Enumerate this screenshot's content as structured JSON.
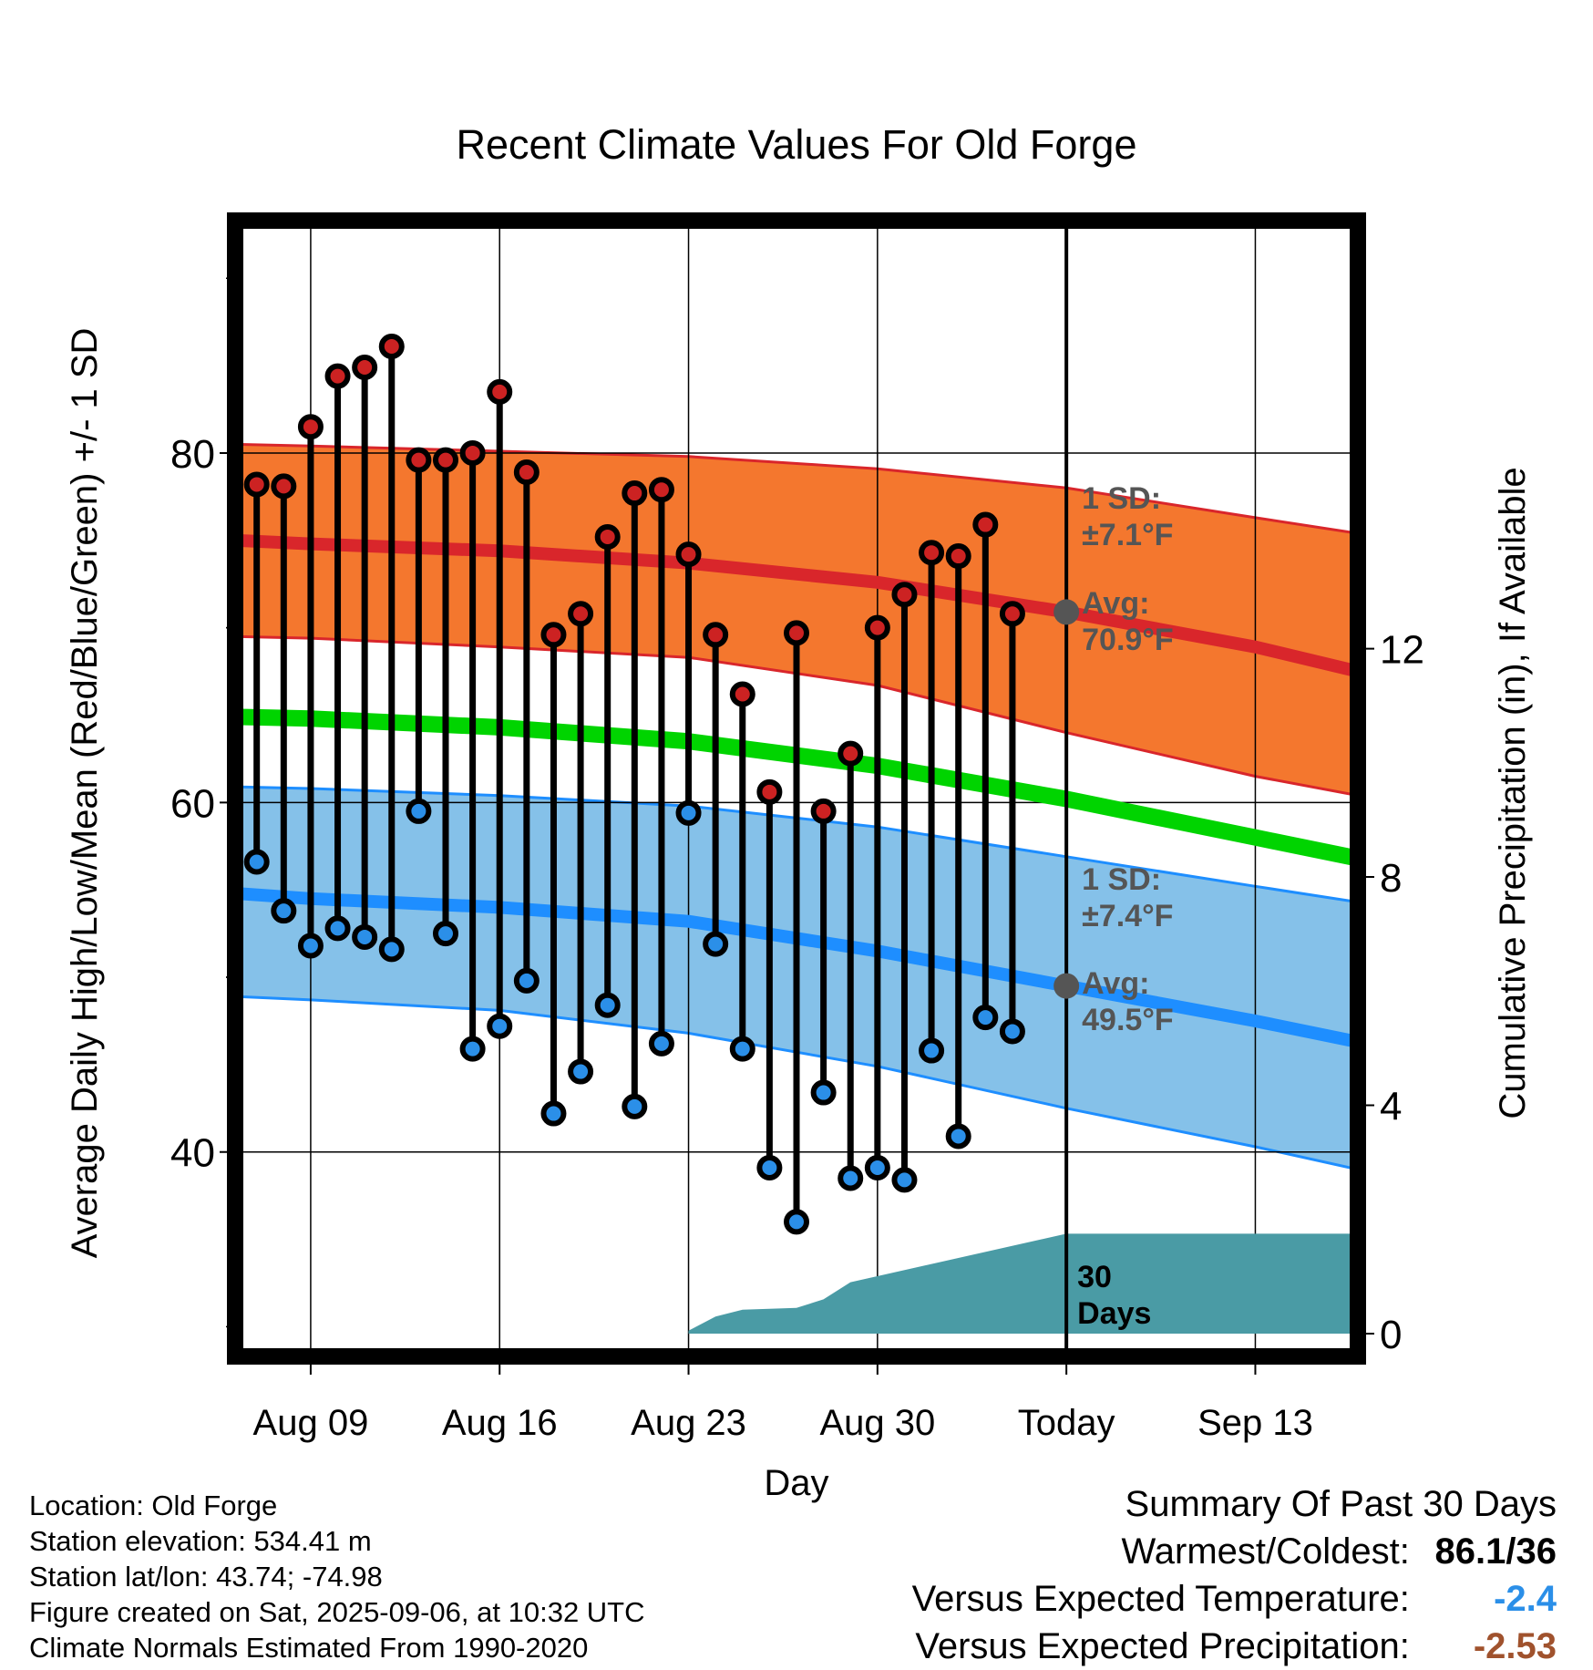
{
  "chart_data": {
    "type": "line",
    "title": "Recent Climate Values For Old Forge",
    "xlabel": "Day",
    "ylabel": "Average Daily High/Low/Mean (Red/Blue/Green) +/- 1 SD",
    "y2label": "Cumulative Precipitation (in), If Available",
    "ylim": [
      28.3,
      93.3
    ],
    "y2lim": [
      -0.4,
      19.5
    ],
    "xlim": [
      -2.8,
      38.8
    ],
    "y_ticks": [
      "40",
      "60",
      "80"
    ],
    "y2_ticks": [
      "0",
      "4",
      "8",
      "12"
    ],
    "x_ticks": [
      {
        "day": 0,
        "label": "Aug 09"
      },
      {
        "day": 7,
        "label": "Aug 16"
      },
      {
        "day": 14,
        "label": "Aug 23"
      },
      {
        "day": 21,
        "label": "Aug 30"
      },
      {
        "day": 28,
        "label": "Today"
      },
      {
        "day": 35,
        "label": "Sep 13"
      }
    ],
    "today_day": 28,
    "daily_high": [
      78.2,
      78.1,
      81.5,
      84.4,
      84.9,
      86.1,
      79.6,
      79.6,
      80.0,
      83.5,
      78.9,
      69.6,
      70.8,
      75.2,
      77.7,
      77.9,
      74.2,
      69.6,
      66.2,
      60.6,
      69.7,
      59.5,
      62.8,
      70.0,
      71.9,
      74.3,
      74.1,
      75.9,
      70.8
    ],
    "daily_low": [
      56.6,
      53.8,
      51.8,
      52.8,
      52.3,
      51.6,
      59.5,
      52.5,
      45.9,
      47.2,
      49.8,
      42.2,
      44.6,
      48.4,
      42.6,
      46.2,
      59.4,
      51.9,
      45.9,
      39.1,
      36.0,
      43.4,
      38.5,
      39.1,
      38.4,
      45.8,
      40.9,
      47.7,
      46.9
    ],
    "normal_high": {
      "x": [
        -2.8,
        0,
        7,
        14,
        21,
        28,
        35,
        38.8
      ],
      "avg": [
        75.0,
        74.8,
        74.4,
        73.7,
        72.6,
        70.9,
        68.9,
        67.5
      ],
      "upper": [
        80.5,
        80.4,
        80.1,
        79.8,
        79.1,
        78.0,
        76.3,
        75.4
      ],
      "lower": [
        69.5,
        69.4,
        68.9,
        68.3,
        66.7,
        64.0,
        61.5,
        60.4
      ]
    },
    "normal_low": {
      "x": [
        -2.8,
        0,
        7,
        14,
        21,
        28,
        35,
        38.8
      ],
      "avg": [
        54.8,
        54.5,
        54.0,
        53.2,
        51.5,
        49.5,
        47.5,
        46.3
      ],
      "upper": [
        60.9,
        60.8,
        60.4,
        59.8,
        58.6,
        56.9,
        55.2,
        54.3
      ],
      "lower": [
        48.9,
        48.7,
        48.1,
        46.8,
        44.9,
        42.5,
        40.3,
        39.0
      ]
    },
    "normal_mean": {
      "x": [
        -2.8,
        0,
        7,
        14,
        21,
        28,
        35,
        38.8
      ],
      "values": [
        64.9,
        64.8,
        64.3,
        63.5,
        62.1,
        60.2,
        58.0,
        56.8
      ]
    },
    "precip_cumulative": {
      "x": [
        14,
        15,
        16,
        18,
        19,
        20,
        28,
        38.8
      ],
      "values": [
        0.05,
        0.3,
        0.42,
        0.45,
        0.6,
        0.9,
        1.75,
        1.75
      ]
    },
    "annotations": {
      "high_sd": [
        "1 SD:",
        "±7.1°F"
      ],
      "high_avg": [
        "Avg:",
        "70.9°F"
      ],
      "low_sd": [
        "1 SD:",
        "±7.4°F"
      ],
      "low_avg": [
        "Avg:",
        "49.5°F"
      ],
      "precip_days": [
        "30",
        "Days"
      ]
    },
    "colors": {
      "high_band": "#f4772e",
      "high_line": "#d9262b",
      "low_band": "#85c1e9",
      "low_line": "#1e8eff",
      "mean_line": "#00d400",
      "precip": "#4a9ba5",
      "high_marker": "#cc2222",
      "low_marker": "#2b8fe8",
      "annotation": "#555555"
    }
  },
  "info": {
    "location": "Location: Old Forge",
    "elevation": "Station elevation: 534.41 m",
    "latlon": "Station lat/lon: 43.74; -74.98",
    "created": "Figure created on Sat, 2025-09-06, at 10:32 UTC",
    "normals": "Climate Normals Estimated From 1990-2020"
  },
  "summary": {
    "title": "Summary Of Past 30 Days",
    "warm_cold_label": "Warmest/Coldest:",
    "warm_cold_value": "86.1/36",
    "temp_label": "Versus Expected Temperature:",
    "temp_value": "-2.4",
    "temp_color": "#2b8fe8",
    "precip_label": "Versus Expected Precipitation:",
    "precip_value": "-2.53",
    "precip_color": "#a0522d"
  }
}
